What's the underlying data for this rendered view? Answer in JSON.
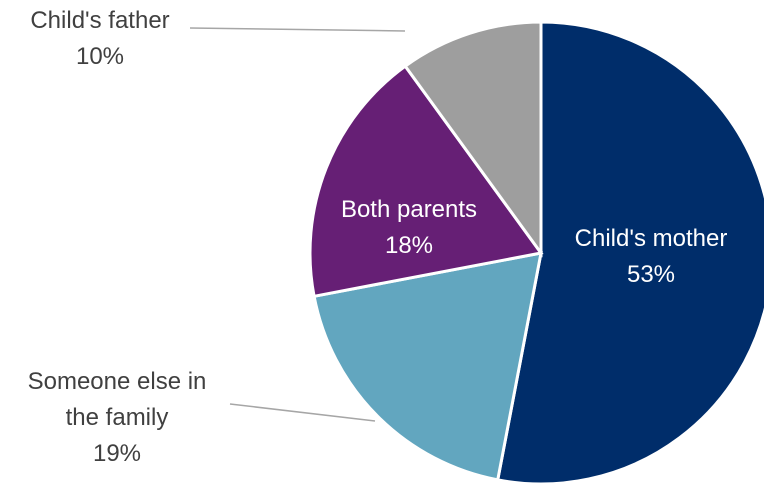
{
  "chart_data": {
    "type": "pie",
    "title": "",
    "slices": [
      {
        "label": "Child's mother",
        "value": 53,
        "value_label": "53%",
        "color": "#002d6a"
      },
      {
        "label": "Someone else in the family",
        "value": 19,
        "value_label": "19%",
        "color": "#62a6bf"
      },
      {
        "label": "Both parents",
        "value": 18,
        "value_label": "18%",
        "color": "#661f75"
      },
      {
        "label": "Child's father",
        "value": 10,
        "value_label": "10%",
        "color": "#9e9e9e"
      }
    ],
    "start_angle": "12 o'clock",
    "direction": "clockwise",
    "legend": "none"
  },
  "labels": {
    "mother": {
      "name": "Child's mother",
      "pct": "53%"
    },
    "someone_else": {
      "line1": "Someone else in",
      "line2": "the family",
      "pct": "19%"
    },
    "both_parents": {
      "name": "Both parents",
      "pct": "18%"
    },
    "father": {
      "name": "Child's father",
      "pct": "10%"
    }
  }
}
